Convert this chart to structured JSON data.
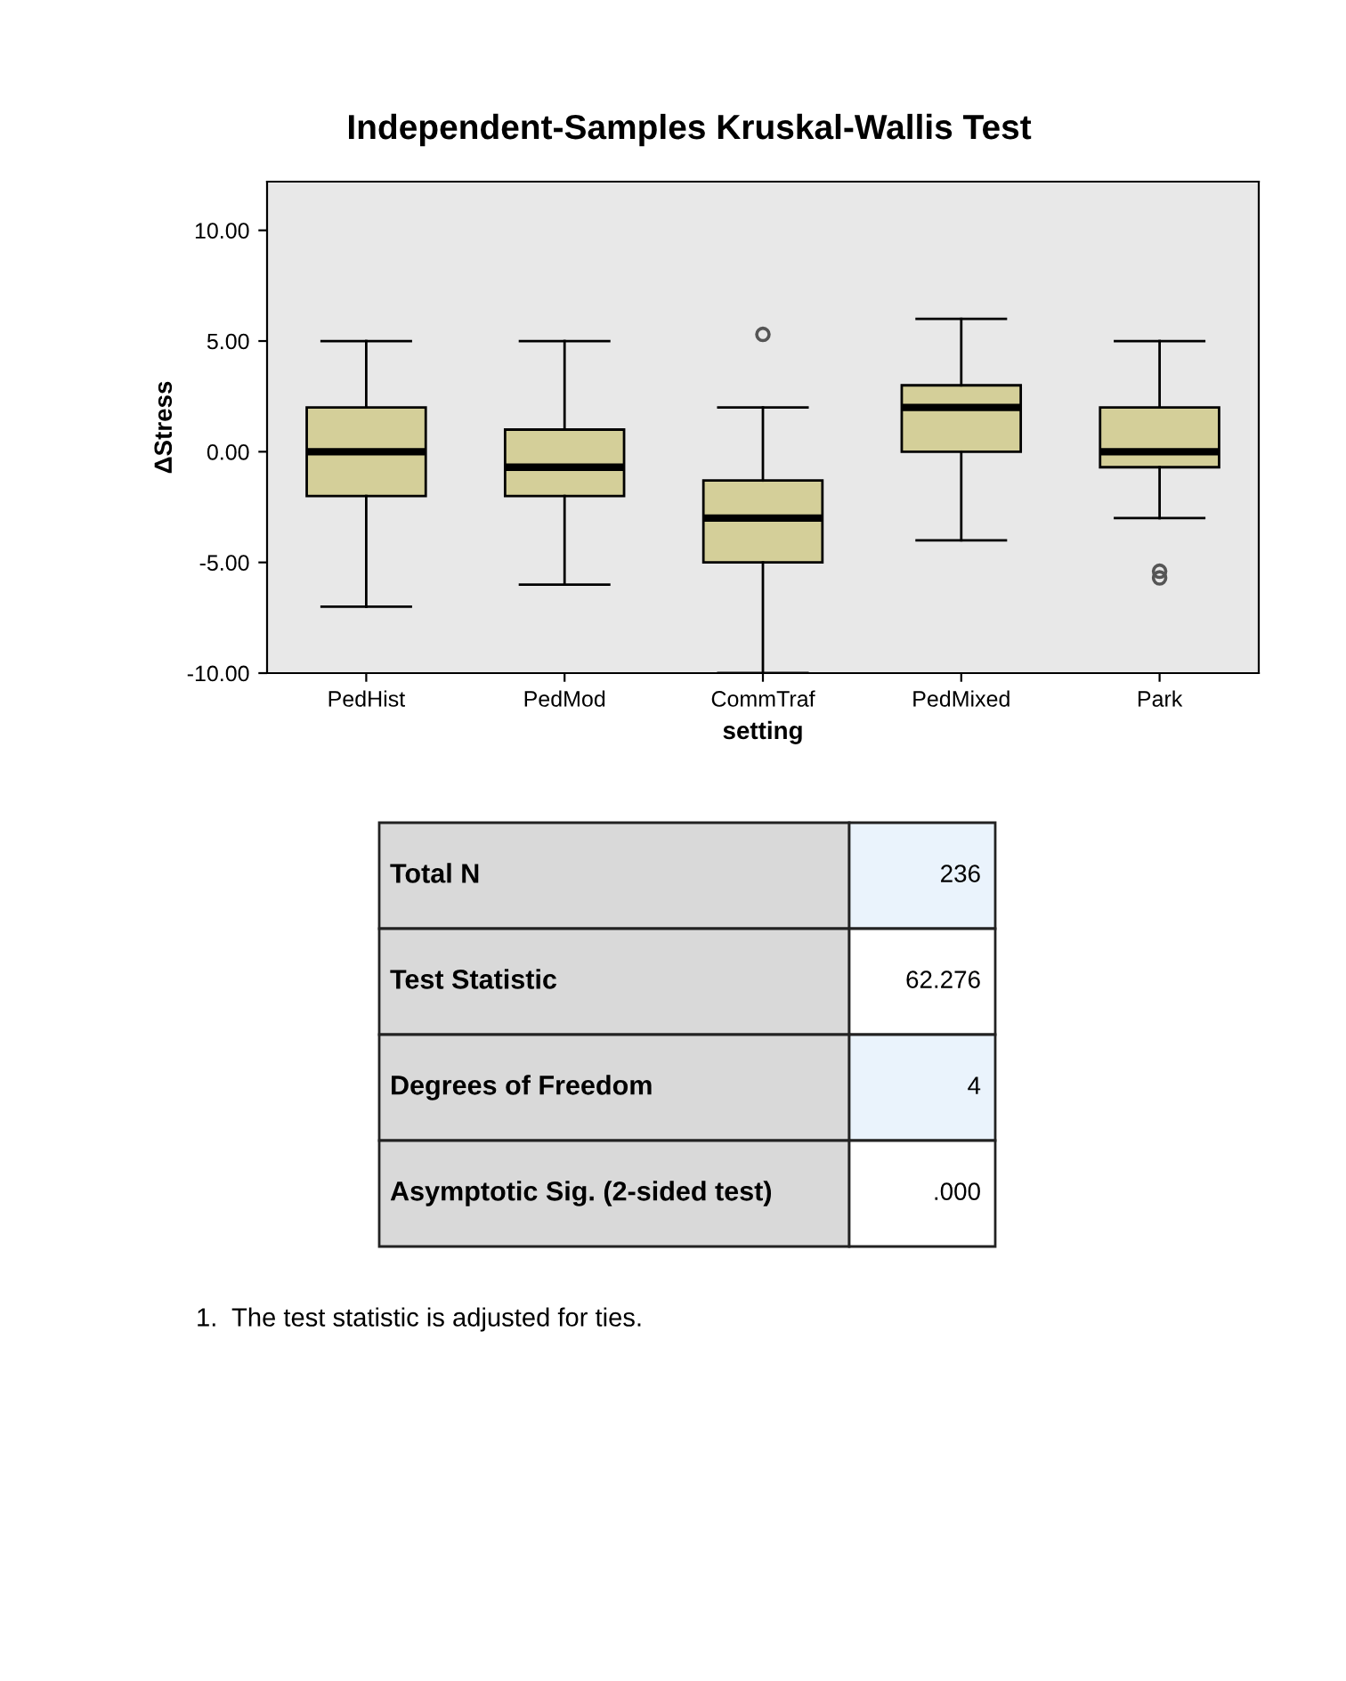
{
  "chart_data": {
    "type": "box",
    "title": "Independent-Samples Kruskal-Wallis Test",
    "xlabel": "setting",
    "ylabel": "ΔStress",
    "categories": [
      "PedHist",
      "PedMod",
      "CommTraf",
      "PedMixed",
      "Park"
    ],
    "color": "#d4cf99",
    "boxes": [
      {
        "low": -7,
        "q1": -2,
        "median": 0,
        "q3": 2,
        "high": 5
      },
      {
        "low": -6,
        "q1": -2,
        "median": -0.7,
        "q3": 1,
        "high": 5
      },
      {
        "low": -10,
        "q1": -5,
        "median": -3,
        "q3": -1.3,
        "high": 2,
        "outliers": [
          5.3
        ]
      },
      {
        "low": -4,
        "q1": 0,
        "median": 2,
        "q3": 3,
        "high": 6
      },
      {
        "low": -3,
        "q1": -0.7,
        "median": 0,
        "q3": 2,
        "high": 5,
        "outliers": [
          -5.4,
          -5.7
        ]
      }
    ],
    "ylim": [
      -10,
      12.2
    ],
    "yticks": [
      {
        "value": -10,
        "label": "-10.00"
      },
      {
        "value": -5,
        "label": "-5.00"
      },
      {
        "value": 0,
        "label": "0.00"
      },
      {
        "value": 5,
        "label": "5.00"
      },
      {
        "value": 10,
        "label": "10.00"
      }
    ],
    "grid": false,
    "annotations": [
      "Total N",
      "236",
      "Test Statistic",
      "62.276",
      "Degrees of Freedom",
      "4",
      "Asymptotic Sig. (2-sided test)",
      ".000",
      "1.  The test statistic is adjusted for ties."
    ]
  }
}
